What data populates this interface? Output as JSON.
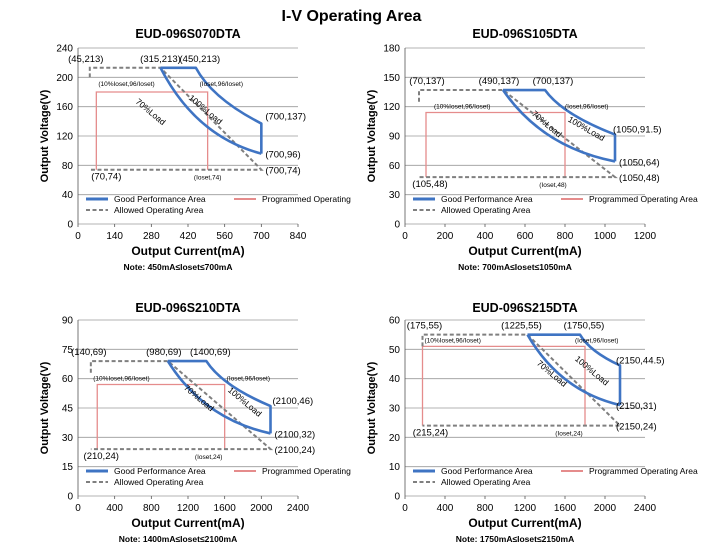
{
  "page_title": "I-V Operating Area",
  "colors": {
    "good": "#3f74c3",
    "programmed": "#e58c8c",
    "allowed": "#7f7f7f",
    "grid": "#9a9a9a"
  },
  "chart_data": [
    {
      "type": "area",
      "title": "EUD-096S070DTA",
      "xlabel": "Output Current(mA)",
      "ylabel": "Output Voltage(V)",
      "note": "Note:  450mA≤Ioset≤700mA",
      "xlim": [
        0,
        840
      ],
      "ylim": [
        0,
        240
      ],
      "xticks": [
        0,
        140,
        280,
        420,
        560,
        700,
        840
      ],
      "yticks": [
        0,
        40,
        80,
        120,
        160,
        200,
        240
      ],
      "legend": [
        "Good Performance Area",
        "Programmed Operating Area",
        "Allowed Operating Area"
      ],
      "series": [
        {
          "name": "Good Performance Area",
          "points": [
            [
              315,
              213
            ],
            [
              450,
              213
            ],
            [
              700,
              137
            ],
            [
              700,
              96
            ]
          ],
          "inner_curve": [
            [
              315,
              213
            ],
            [
              700,
              96
            ]
          ]
        },
        {
          "name": "Programmed Operating Area",
          "points": [
            [
              70,
              74
            ],
            [
              70,
              180
            ],
            [
              495,
              180
            ],
            [
              495,
              74
            ]
          ]
        },
        {
          "name": "Allowed Operating Area",
          "points": [
            [
              45,
              200
            ],
            [
              45,
              213
            ],
            [
              315,
              213
            ],
            [
              700,
              74
            ],
            [
              70,
              74
            ],
            [
              45,
              74
            ]
          ]
        }
      ],
      "annotations": [
        {
          "text": "(45,213)",
          "x": 45,
          "y": 213
        },
        {
          "text": "(315,213)",
          "x": 315,
          "y": 213
        },
        {
          "text": "(450,213)",
          "x": 450,
          "y": 213
        },
        {
          "text": "(700,137)",
          "x": 700,
          "y": 137
        },
        {
          "text": "(700,96)",
          "x": 700,
          "y": 96
        },
        {
          "text": "(700,74)",
          "x": 700,
          "y": 74
        },
        {
          "text": "(70,74)",
          "x": 70,
          "y": 74
        },
        {
          "text": "(Ioset,74)",
          "x": 495,
          "y": 74
        },
        {
          "text": "(10%Ioset,96/Ioset)",
          "x": 70,
          "y": 180
        },
        {
          "text": "(Ioset,96/Ioset)",
          "x": 495,
          "y": 180
        },
        {
          "text": "70%Load",
          "x": 270,
          "y": 150
        },
        {
          "text": "100%Load",
          "x": 480,
          "y": 153
        }
      ]
    },
    {
      "type": "area",
      "title": "EUD-096S105DTA",
      "xlabel": "Output Current(mA)",
      "ylabel": "Output Voltage(V)",
      "note": "Note:  700mA≤Ioset≤1050mA",
      "xlim": [
        0,
        1200
      ],
      "ylim": [
        0,
        180
      ],
      "xticks": [
        0,
        200,
        400,
        600,
        800,
        1000,
        1200
      ],
      "yticks": [
        0,
        30,
        60,
        90,
        120,
        150,
        180
      ],
      "legend": [
        "Good Performance Area",
        "Programmed Operating Area",
        "Allowed Operating Area"
      ],
      "series": [
        {
          "name": "Good Performance Area",
          "points": [
            [
              490,
              137
            ],
            [
              700,
              137
            ],
            [
              1050,
              91.5
            ],
            [
              1050,
              64
            ]
          ],
          "inner_curve": [
            [
              490,
              137
            ],
            [
              1050,
              64
            ]
          ]
        },
        {
          "name": "Programmed Operating Area",
          "points": [
            [
              105,
              48
            ],
            [
              105,
              114
            ],
            [
              800,
              114
            ],
            [
              800,
              48
            ]
          ]
        },
        {
          "name": "Allowed Operating Area",
          "points": [
            [
              70,
              125
            ],
            [
              70,
              137
            ],
            [
              490,
              137
            ],
            [
              1050,
              48
            ],
            [
              105,
              48
            ],
            [
              70,
              48
            ]
          ]
        }
      ],
      "annotations": [
        {
          "text": "(70,137)",
          "x": 70,
          "y": 137
        },
        {
          "text": "(490,137)",
          "x": 490,
          "y": 137
        },
        {
          "text": "(700,137)",
          "x": 700,
          "y": 137
        },
        {
          "text": "(1050,91.5)",
          "x": 1050,
          "y": 91.5
        },
        {
          "text": "(1050,64)",
          "x": 1050,
          "y": 64
        },
        {
          "text": "(1050,48)",
          "x": 1050,
          "y": 48
        },
        {
          "text": "(105,48)",
          "x": 105,
          "y": 48
        },
        {
          "text": "(Ioset,48)",
          "x": 800,
          "y": 48
        },
        {
          "text": "(10%Ioset,96/Ioset)",
          "x": 105,
          "y": 114
        },
        {
          "text": "(Ioset,96/Ioset)",
          "x": 800,
          "y": 114
        },
        {
          "text": "70%Load",
          "x": 700,
          "y": 100
        },
        {
          "text": "100%Load",
          "x": 900,
          "y": 95
        }
      ]
    },
    {
      "type": "area",
      "title": "EUD-096S210DTA",
      "xlabel": "Output Current(mA)",
      "ylabel": "Output Voltage(V)",
      "note": "Note:  1400mA≤Ioset≤2100mA",
      "xlim": [
        0,
        2400
      ],
      "ylim": [
        0,
        90
      ],
      "xticks": [
        0,
        400,
        800,
        1200,
        1600,
        2000,
        2400
      ],
      "yticks": [
        0,
        15,
        30,
        45,
        60,
        75,
        90
      ],
      "legend": [
        "Good Performance Area",
        "Programmed Operating Area",
        "Allowed Operating Area"
      ],
      "series": [
        {
          "name": "Good Performance Area",
          "points": [
            [
              980,
              69
            ],
            [
              1400,
              69
            ],
            [
              2100,
              46
            ],
            [
              2100,
              32
            ]
          ],
          "inner_curve": [
            [
              980,
              69
            ],
            [
              2100,
              32
            ]
          ]
        },
        {
          "name": "Programmed Operating Area",
          "points": [
            [
              210,
              24
            ],
            [
              210,
              57
            ],
            [
              1600,
              57
            ],
            [
              1600,
              24
            ]
          ]
        },
        {
          "name": "Allowed Operating Area",
          "points": [
            [
              140,
              63
            ],
            [
              140,
              69
            ],
            [
              980,
              69
            ],
            [
              2100,
              24
            ],
            [
              210,
              24
            ],
            [
              140,
              24
            ]
          ]
        }
      ],
      "annotations": [
        {
          "text": "(140,69)",
          "x": 140,
          "y": 69
        },
        {
          "text": "(980,69)",
          "x": 980,
          "y": 69
        },
        {
          "text": "(1400,69)",
          "x": 1400,
          "y": 69
        },
        {
          "text": "(2100,46)",
          "x": 2100,
          "y": 46
        },
        {
          "text": "(2100,32)",
          "x": 2100,
          "y": 32
        },
        {
          "text": "(2100,24)",
          "x": 2100,
          "y": 24
        },
        {
          "text": "(210,24)",
          "x": 210,
          "y": 24
        },
        {
          "text": "(Ioset,24)",
          "x": 1600,
          "y": 24
        },
        {
          "text": "(10%Ioset,96/Ioset)",
          "x": 210,
          "y": 57
        },
        {
          "text": "(Ioset,96/Ioset)",
          "x": 1600,
          "y": 57
        },
        {
          "text": "70%Load",
          "x": 1300,
          "y": 49
        },
        {
          "text": "100%Load",
          "x": 1800,
          "y": 47
        }
      ]
    },
    {
      "type": "area",
      "title": "EUD-096S215DTA",
      "xlabel": "Output Current(mA)",
      "ylabel": "Output Voltage(V)",
      "note": "Note:  1750mA≤Ioset≤2150mA",
      "xlim": [
        0,
        2400
      ],
      "ylim": [
        0,
        60
      ],
      "xticks": [
        0,
        400,
        800,
        1200,
        1600,
        2000,
        2400
      ],
      "yticks": [
        0,
        10,
        20,
        30,
        40,
        50,
        60
      ],
      "legend": [
        "Good Performance Area",
        "Programmed Operating Area",
        "Allowed Operating Area"
      ],
      "series": [
        {
          "name": "Good Performance Area",
          "points": [
            [
              1225,
              55
            ],
            [
              1750,
              55
            ],
            [
              2150,
              44.5
            ],
            [
              2150,
              31
            ]
          ],
          "inner_curve": [
            [
              1225,
              55
            ],
            [
              2150,
              31
            ]
          ]
        },
        {
          "name": "Programmed Operating Area",
          "points": [
            [
              175,
              24
            ],
            [
              175,
              51
            ],
            [
              1800,
              51
            ],
            [
              1800,
              24
            ]
          ]
        },
        {
          "name": "Allowed Operating Area",
          "points": [
            [
              175,
              51
            ],
            [
              175,
              55
            ],
            [
              1225,
              55
            ],
            [
              2150,
              24
            ],
            [
              215,
              24
            ],
            [
              175,
              24
            ]
          ]
        }
      ],
      "annotations": [
        {
          "text": "(175,55)",
          "x": 175,
          "y": 55
        },
        {
          "text": "(1225,55)",
          "x": 1225,
          "y": 55
        },
        {
          "text": "(1750,55)",
          "x": 1750,
          "y": 55
        },
        {
          "text": "(2150,44.5)",
          "x": 2150,
          "y": 44.5
        },
        {
          "text": "(2150,31)",
          "x": 2150,
          "y": 31
        },
        {
          "text": "(2150,24)",
          "x": 2150,
          "y": 24
        },
        {
          "text": "(215,24)",
          "x": 215,
          "y": 24
        },
        {
          "text": "(Ioset,24)",
          "x": 1800,
          "y": 24
        },
        {
          "text": "(10%Ioset,96/Ioset)",
          "x": 175,
          "y": 51
        },
        {
          "text": "(Ioset,96/Ioset)",
          "x": 1800,
          "y": 51
        },
        {
          "text": "70%Load",
          "x": 1450,
          "y": 41
        },
        {
          "text": "100%Load",
          "x": 1850,
          "y": 42
        }
      ]
    }
  ]
}
